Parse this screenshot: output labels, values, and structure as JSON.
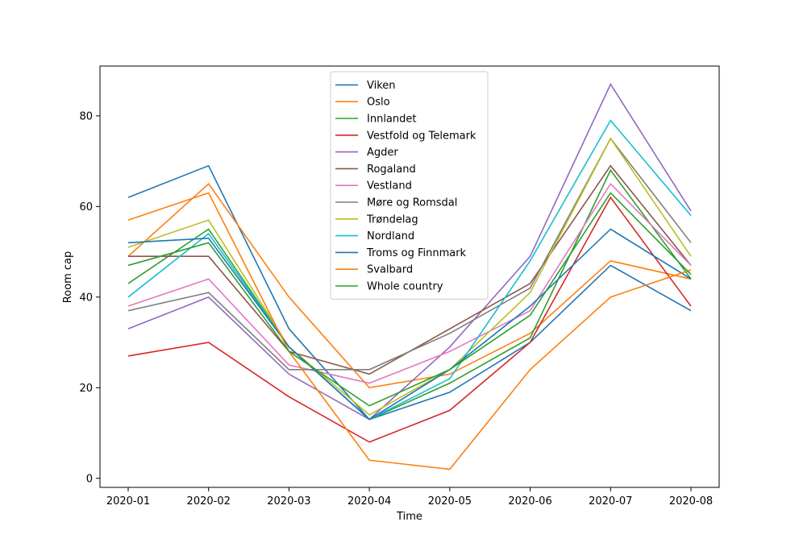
{
  "chart_data": {
    "type": "line",
    "title": "",
    "xlabel": "Time",
    "ylabel": "Room cap",
    "categories": [
      "2020-01",
      "2020-02",
      "2020-03",
      "2020-04",
      "2020-05",
      "2020-06",
      "2020-07",
      "2020-08"
    ],
    "ylim": [
      -2,
      91
    ],
    "yticks": [
      0,
      20,
      40,
      60,
      80
    ],
    "grid": false,
    "legend_position": "top-center",
    "series": [
      {
        "name": "Viken",
        "color": "#1f77b4",
        "values": [
          62,
          69,
          33,
          13,
          19,
          30,
          47,
          37
        ]
      },
      {
        "name": "Oslo",
        "color": "#ff7f0e",
        "values": [
          49,
          65,
          40,
          20,
          23,
          32,
          48,
          44
        ]
      },
      {
        "name": "Innlandet",
        "color": "#2ca02c",
        "values": [
          43,
          55,
          29,
          13,
          21,
          31,
          68,
          44
        ]
      },
      {
        "name": "Vestfold og Telemark",
        "color": "#d62728",
        "values": [
          27,
          30,
          18,
          8,
          15,
          30,
          62,
          38
        ]
      },
      {
        "name": "Agder",
        "color": "#9467bd",
        "values": [
          33,
          40,
          23,
          13,
          29,
          49,
          87,
          59
        ]
      },
      {
        "name": "Rogaland",
        "color": "#8c564b",
        "values": [
          49,
          49,
          28,
          23,
          33,
          43,
          69,
          47
        ]
      },
      {
        "name": "Vestland",
        "color": "#e377c2",
        "values": [
          38,
          44,
          25,
          21,
          28,
          37,
          65,
          47
        ]
      },
      {
        "name": "Møre og Romsdal",
        "color": "#7f7f7f",
        "values": [
          37,
          41,
          24,
          24,
          32,
          42,
          75,
          52
        ]
      },
      {
        "name": "Trøndelag",
        "color": "#bcbd22",
        "values": [
          51,
          57,
          29,
          14,
          24,
          41,
          75,
          49
        ]
      },
      {
        "name": "Nordland",
        "color": "#17becf",
        "values": [
          40,
          54,
          29,
          13,
          22,
          48,
          79,
          58
        ]
      },
      {
        "name": "Troms og Finnmark",
        "color": "#1f77b4",
        "values": [
          52,
          53,
          29,
          13,
          24,
          38,
          55,
          44
        ]
      },
      {
        "name": "Svalbard",
        "color": "#ff7f0e",
        "values": [
          57,
          63,
          28,
          4,
          2,
          24,
          40,
          46
        ]
      },
      {
        "name": "Whole country",
        "color": "#2ca02c",
        "values": [
          47,
          52,
          28,
          16,
          24,
          36,
          63,
          45
        ]
      }
    ]
  }
}
